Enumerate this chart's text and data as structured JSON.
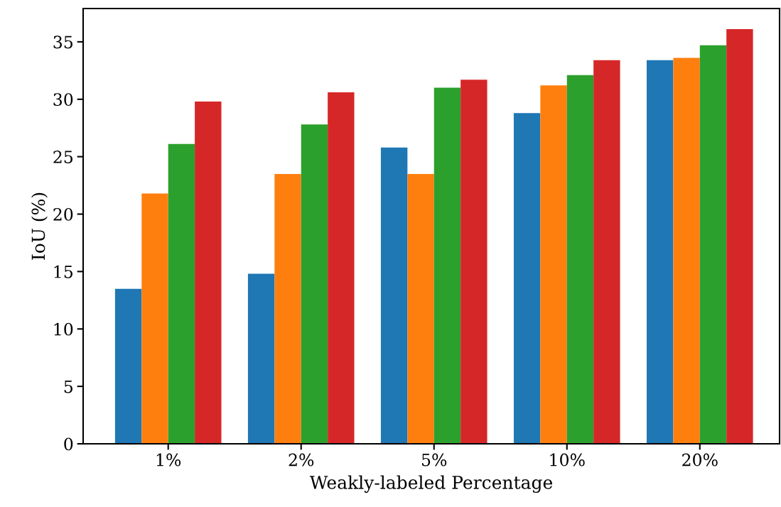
{
  "chart_data": {
    "type": "bar",
    "xlabel": "Weakly-labeled Percentage",
    "ylabel": "IoU (%)",
    "categories": [
      "1%",
      "2%",
      "5%",
      "10%",
      "20%"
    ],
    "series": [
      {
        "color": "#1f77b4",
        "values": [
          13.5,
          14.8,
          25.8,
          28.8,
          33.4
        ]
      },
      {
        "color": "#ff7f0e",
        "values": [
          21.8,
          23.5,
          23.5,
          31.2,
          33.6
        ]
      },
      {
        "color": "#2ca02c",
        "values": [
          26.1,
          27.8,
          31.0,
          32.1,
          34.7
        ]
      },
      {
        "color": "#d62728",
        "values": [
          29.8,
          30.6,
          31.7,
          33.4,
          36.1
        ]
      }
    ],
    "ylim": [
      0,
      37.9
    ],
    "yticks": [
      0,
      5,
      10,
      15,
      20,
      25,
      30,
      35
    ],
    "grid": false
  }
}
